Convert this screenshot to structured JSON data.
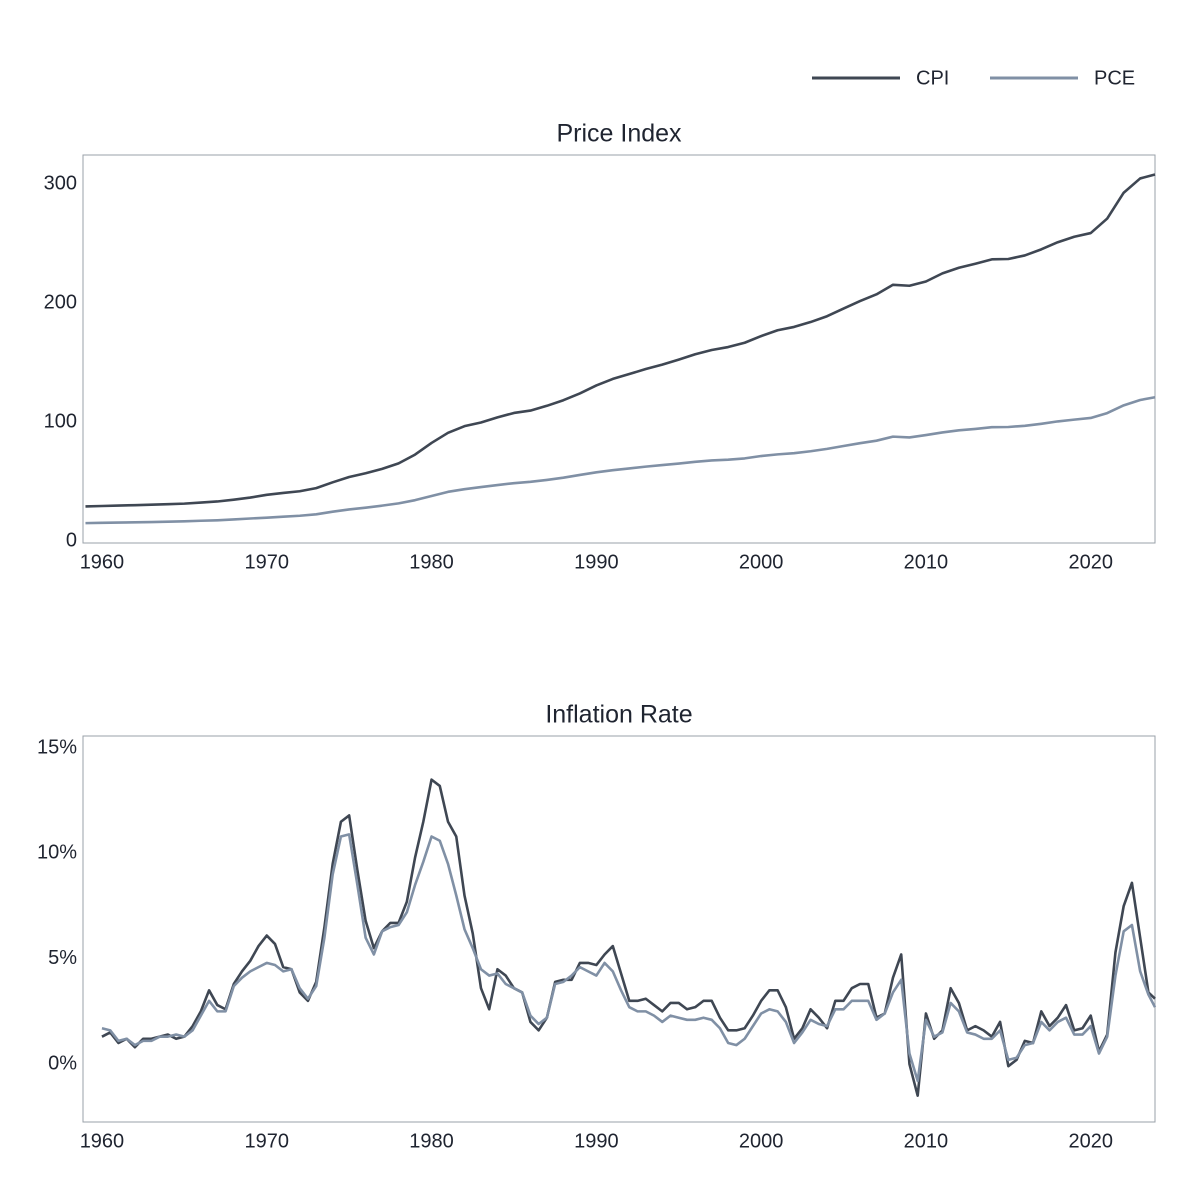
{
  "chart_data": [
    {
      "type": "line",
      "title": "Price Index",
      "legend": "top-right",
      "x": [
        1959,
        1960,
        1961,
        1962,
        1963,
        1964,
        1965,
        1966,
        1967,
        1968,
        1969,
        1970,
        1971,
        1972,
        1973,
        1974,
        1975,
        1976,
        1977,
        1978,
        1979,
        1980,
        1981,
        1982,
        1983,
        1984,
        1985,
        1986,
        1987,
        1988,
        1989,
        1990,
        1991,
        1992,
        1993,
        1994,
        1995,
        1996,
        1997,
        1998,
        1999,
        2000,
        2001,
        2002,
        2003,
        2004,
        2005,
        2006,
        2007,
        2008,
        2009,
        2010,
        2011,
        2012,
        2013,
        2014,
        2015,
        2016,
        2017,
        2018,
        2019,
        2020,
        2021,
        2022,
        2023,
        2023.9
      ],
      "series": [
        {
          "name": "CPI",
          "color": "#3f4753",
          "values": [
            29.0,
            29.4,
            29.8,
            30.1,
            30.5,
            30.9,
            31.4,
            32.3,
            33.2,
            34.7,
            36.5,
            38.8,
            40.4,
            41.8,
            44.4,
            49.3,
            53.8,
            56.9,
            60.6,
            65.2,
            72.6,
            82.4,
            90.9,
            96.5,
            99.6,
            103.9,
            107.6,
            109.6,
            113.6,
            118.3,
            124.0,
            130.7,
            136.2,
            140.3,
            144.5,
            148.2,
            152.4,
            156.9,
            160.5,
            163.0,
            166.6,
            172.2,
            177.1,
            179.9,
            184.0,
            188.9,
            195.3,
            201.6,
            207.3,
            215.3,
            214.5,
            218.1,
            224.9,
            229.6,
            233.0,
            236.7,
            237.0,
            240.0,
            245.1,
            251.1,
            255.7,
            258.8,
            271.0,
            292.7,
            304.7,
            308.0
          ]
        },
        {
          "name": "PCE",
          "color": "#8090a5",
          "values": [
            15.0,
            15.3,
            15.5,
            15.7,
            15.9,
            16.2,
            16.5,
            17.0,
            17.4,
            18.1,
            18.9,
            19.6,
            20.4,
            21.2,
            22.4,
            24.6,
            26.5,
            28.0,
            29.7,
            31.6,
            34.3,
            37.8,
            41.3,
            43.5,
            45.3,
            47.0,
            48.6,
            49.7,
            51.3,
            53.2,
            55.5,
            57.7,
            59.5,
            61.0,
            62.5,
            63.8,
            65.1,
            66.5,
            67.7,
            68.3,
            69.4,
            71.4,
            72.8,
            73.8,
            75.4,
            77.4,
            79.8,
            82.2,
            84.3,
            87.7,
            87.0,
            89.0,
            91.2,
            93.0,
            94.2,
            95.6,
            95.8,
            96.8,
            98.5,
            100.5,
            102.0,
            103.4,
            107.5,
            114.0,
            118.5,
            120.8
          ]
        }
      ],
      "xlim": [
        1958.85,
        2023.9
      ],
      "xticks": [
        1960,
        1970,
        1980,
        1990,
        2000,
        2010,
        2020
      ],
      "ylim": [
        -1.7,
        324.4
      ],
      "yticks": [
        0,
        100,
        200,
        300
      ]
    },
    {
      "type": "line",
      "title": "Inflation Rate",
      "x": [
        1960,
        1960.5,
        1961,
        1961.5,
        1962,
        1962.5,
        1963,
        1963.5,
        1964,
        1964.5,
        1965,
        1965.5,
        1966,
        1966.5,
        1967,
        1967.5,
        1968,
        1968.5,
        1969,
        1969.5,
        1970,
        1970.5,
        1971,
        1971.5,
        1972,
        1972.5,
        1973,
        1973.5,
        1974,
        1974.5,
        1975,
        1975.5,
        1976,
        1976.5,
        1977,
        1977.5,
        1978,
        1978.5,
        1979,
        1979.5,
        1980,
        1980.5,
        1981,
        1981.5,
        1982,
        1982.5,
        1983,
        1983.5,
        1984,
        1984.5,
        1985,
        1985.5,
        1986,
        1986.5,
        1987,
        1987.5,
        1988,
        1988.5,
        1989,
        1989.5,
        1990,
        1990.5,
        1991,
        1991.5,
        1992,
        1992.5,
        1993,
        1993.5,
        1994,
        1994.5,
        1995,
        1995.5,
        1996,
        1996.5,
        1997,
        1997.5,
        1998,
        1998.5,
        1999,
        1999.5,
        2000,
        2000.5,
        2001,
        2001.5,
        2002,
        2002.5,
        2003,
        2003.5,
        2004,
        2004.5,
        2005,
        2005.5,
        2006,
        2006.5,
        2007,
        2007.5,
        2008,
        2008.5,
        2009,
        2009.5,
        2010,
        2010.5,
        2011,
        2011.5,
        2012,
        2012.5,
        2013,
        2013.5,
        2014,
        2014.5,
        2015,
        2015.5,
        2016,
        2016.5,
        2017,
        2017.5,
        2018,
        2018.5,
        2019,
        2019.5,
        2020,
        2020.5,
        2021,
        2021.5,
        2022,
        2022.5,
        2023,
        2023.5,
        2023.9
      ],
      "series": [
        {
          "color": "#3f4753",
          "values": [
            1.3,
            1.5,
            1.0,
            1.2,
            0.8,
            1.2,
            1.2,
            1.3,
            1.4,
            1.2,
            1.3,
            1.8,
            2.5,
            3.5,
            2.8,
            2.6,
            3.8,
            4.4,
            4.9,
            5.6,
            6.1,
            5.7,
            4.6,
            4.5,
            3.4,
            3.0,
            3.9,
            6.5,
            9.5,
            11.5,
            11.8,
            9.2,
            6.8,
            5.5,
            6.3,
            6.7,
            6.7,
            7.7,
            9.8,
            11.5,
            13.5,
            13.2,
            11.5,
            10.8,
            8.0,
            6.2,
            3.6,
            2.6,
            4.5,
            4.2,
            3.6,
            3.4,
            2.0,
            1.6,
            2.2,
            3.9,
            4.0,
            4.0,
            4.8,
            4.8,
            4.7,
            5.2,
            5.6,
            4.3,
            3.0,
            3.0,
            3.1,
            2.8,
            2.5,
            2.9,
            2.9,
            2.6,
            2.7,
            3.0,
            3.0,
            2.2,
            1.6,
            1.6,
            1.7,
            2.3,
            3.0,
            3.5,
            3.5,
            2.7,
            1.2,
            1.7,
            2.6,
            2.2,
            1.7,
            3.0,
            3.0,
            3.6,
            3.8,
            3.8,
            2.2,
            2.4,
            4.1,
            5.2,
            0.0,
            -1.5,
            2.4,
            1.2,
            1.6,
            3.6,
            2.9,
            1.6,
            1.8,
            1.6,
            1.3,
            2.0,
            -0.1,
            0.2,
            1.1,
            1.0,
            2.5,
            1.8,
            2.2,
            2.8,
            1.6,
            1.7,
            2.3,
            0.6,
            1.4,
            5.3,
            7.5,
            8.6,
            6.0,
            3.4,
            3.1
          ]
        },
        {
          "color": "#8090a5",
          "values": [
            1.7,
            1.6,
            1.1,
            1.2,
            0.9,
            1.1,
            1.1,
            1.3,
            1.3,
            1.4,
            1.3,
            1.6,
            2.3,
            3.0,
            2.5,
            2.5,
            3.7,
            4.1,
            4.4,
            4.6,
            4.8,
            4.7,
            4.4,
            4.5,
            3.6,
            3.1,
            3.7,
            6.0,
            9.0,
            10.8,
            10.9,
            8.5,
            6.0,
            5.2,
            6.3,
            6.5,
            6.6,
            7.2,
            8.5,
            9.6,
            10.8,
            10.6,
            9.5,
            8.0,
            6.4,
            5.5,
            4.5,
            4.2,
            4.3,
            3.8,
            3.6,
            3.4,
            2.3,
            1.9,
            2.2,
            3.8,
            3.9,
            4.2,
            4.6,
            4.4,
            4.2,
            4.8,
            4.4,
            3.5,
            2.7,
            2.5,
            2.5,
            2.3,
            2.0,
            2.3,
            2.2,
            2.1,
            2.1,
            2.2,
            2.1,
            1.7,
            1.0,
            0.9,
            1.2,
            1.8,
            2.4,
            2.6,
            2.5,
            2.0,
            1.0,
            1.5,
            2.1,
            1.9,
            1.8,
            2.6,
            2.6,
            3.0,
            3.0,
            3.0,
            2.1,
            2.4,
            3.4,
            4.0,
            0.5,
            -0.8,
            2.1,
            1.3,
            1.5,
            2.9,
            2.5,
            1.5,
            1.4,
            1.2,
            1.2,
            1.6,
            0.2,
            0.3,
            0.9,
            1.0,
            2.0,
            1.6,
            2.0,
            2.2,
            1.4,
            1.4,
            1.8,
            0.5,
            1.3,
            4.2,
            6.3,
            6.6,
            4.4,
            3.3,
            2.7
          ]
        }
      ],
      "xlim": [
        1958.85,
        2023.9
      ],
      "xticks": [
        1960,
        1970,
        1980,
        1990,
        2000,
        2010,
        2020
      ],
      "ylim": [
        -2.75,
        15.57
      ],
      "yticks": [
        {
          "value": 0,
          "label": "0%"
        },
        {
          "value": 5,
          "label": "5%"
        },
        {
          "value": 10,
          "label": "10%"
        },
        {
          "value": 15,
          "label": "15%"
        }
      ]
    }
  ]
}
